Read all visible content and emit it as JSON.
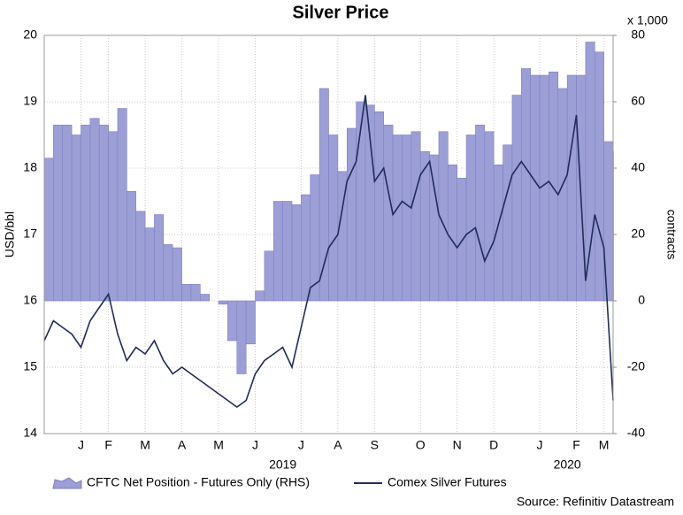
{
  "chart_data": {
    "type": "line",
    "title": "Silver Price",
    "ylabel": "USD/bbl",
    "y2label": "contracts",
    "y2unit": "x 1,000",
    "categories": [
      null,
      null,
      null,
      null,
      "J",
      null,
      null,
      "F",
      null,
      null,
      null,
      "M",
      null,
      null,
      null,
      "A",
      null,
      null,
      null,
      "M",
      null,
      null,
      null,
      "J",
      null,
      null,
      null,
      null,
      "J",
      null,
      null,
      null,
      "A",
      null,
      null,
      null,
      "S",
      null,
      null,
      null,
      null,
      "O",
      null,
      null,
      null,
      "N",
      null,
      null,
      null,
      "D",
      null,
      null,
      null,
      null,
      "J",
      null,
      null,
      null,
      "F",
      null,
      null,
      "M",
      null
    ],
    "x_groups": [
      null,
      null,
      null,
      null,
      null,
      null,
      null,
      null,
      null,
      null,
      null,
      null,
      null,
      null,
      null,
      null,
      null,
      null,
      null,
      null,
      null,
      null,
      null,
      null,
      null,
      null,
      "2019",
      null,
      null,
      null,
      null,
      null,
      null,
      null,
      null,
      null,
      null,
      null,
      null,
      null,
      null,
      null,
      null,
      null,
      null,
      null,
      null,
      null,
      null,
      null,
      null,
      null,
      null,
      null,
      null,
      null,
      null,
      "2020",
      null,
      null,
      null,
      null,
      null
    ],
    "series": [
      {
        "name": "CFTC Net Position - Futures Only (RHS)",
        "type": "area",
        "axis": "y2",
        "color": "#9c9ed6",
        "values": [
          43,
          53,
          53,
          50,
          53,
          55,
          53,
          51,
          58,
          33,
          27,
          22,
          26,
          17,
          16,
          5,
          5,
          2,
          0,
          -1,
          -12,
          -22,
          -13,
          3,
          15,
          30,
          30,
          29,
          32,
          38,
          64,
          50,
          39,
          52,
          60,
          59,
          57,
          53,
          50,
          50,
          51,
          45,
          44,
          51,
          41,
          37,
          50,
          53,
          51,
          41,
          47,
          62,
          70,
          68,
          68,
          69,
          64,
          68,
          68,
          78,
          75,
          48,
          45
        ]
      },
      {
        "name": "Comex Silver Futures",
        "type": "line",
        "color": "#1f2d5a",
        "values": [
          15.4,
          15.7,
          15.6,
          15.5,
          15.3,
          15.7,
          15.9,
          16.1,
          15.5,
          15.1,
          15.3,
          15.2,
          15.4,
          15.1,
          14.9,
          15.0,
          14.9,
          14.8,
          14.7,
          14.6,
          14.5,
          14.4,
          14.5,
          14.9,
          15.1,
          15.2,
          15.3,
          15.0,
          15.6,
          16.2,
          16.3,
          16.8,
          17.0,
          17.8,
          18.1,
          19.1,
          17.8,
          18.0,
          17.3,
          17.5,
          17.4,
          17.9,
          18.1,
          17.3,
          17.0,
          16.8,
          17.0,
          17.1,
          16.6,
          16.9,
          17.4,
          17.9,
          18.1,
          17.9,
          17.7,
          17.8,
          17.6,
          17.9,
          18.8,
          16.3,
          17.3,
          16.8,
          14.5
        ]
      }
    ],
    "ylim": [
      14,
      20
    ],
    "yticks": [
      14,
      15,
      16,
      17,
      18,
      19,
      20
    ],
    "y2lim": [
      -40,
      80
    ],
    "y2ticks": [
      -40,
      -20,
      0,
      20,
      40,
      60,
      80
    ],
    "grid": true,
    "legend": "bottom",
    "source": "Source: Refinitiv Datastream"
  }
}
